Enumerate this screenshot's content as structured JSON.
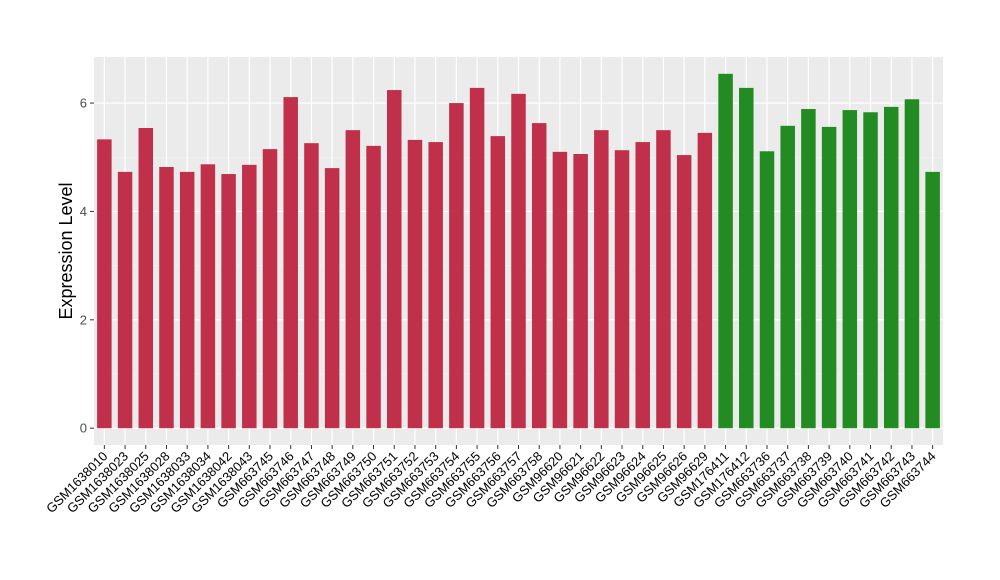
{
  "chart_data": {
    "type": "bar",
    "y_label": "Expression Level",
    "categories": [
      "GSM1638010",
      "GSM1638023",
      "GSM1638025",
      "GSM1638028",
      "GSM1638033",
      "GSM1638034",
      "GSM1638042",
      "GSM1638043",
      "GSM663745",
      "GSM663746",
      "GSM663747",
      "GSM663748",
      "GSM663749",
      "GSM663750",
      "GSM663751",
      "GSM663752",
      "GSM663753",
      "GSM663754",
      "GSM663755",
      "GSM663756",
      "GSM663757",
      "GSM663758",
      "GSM96620",
      "GSM96621",
      "GSM96622",
      "GSM96623",
      "GSM96624",
      "GSM96625",
      "GSM96626",
      "GSM96629",
      "GSM176411",
      "GSM176412",
      "GSM663736",
      "GSM663737",
      "GSM663738",
      "GSM663739",
      "GSM663740",
      "GSM663741",
      "GSM663742",
      "GSM663743",
      "GSM663744"
    ],
    "values": [
      5.33,
      4.73,
      5.54,
      4.82,
      4.73,
      4.87,
      4.69,
      4.86,
      5.15,
      6.11,
      5.26,
      4.8,
      5.5,
      5.21,
      6.24,
      5.32,
      5.28,
      6.0,
      6.28,
      5.39,
      6.17,
      5.63,
      5.1,
      5.06,
      5.5,
      5.13,
      5.28,
      5.5,
      5.04,
      5.45,
      6.54,
      6.28,
      5.11,
      5.58,
      5.89,
      5.56,
      5.87,
      5.83,
      5.93,
      6.07,
      4.73
    ],
    "colors": [
      "#c1304b",
      "#c1304b",
      "#c1304b",
      "#c1304b",
      "#c1304b",
      "#c1304b",
      "#c1304b",
      "#c1304b",
      "#c1304b",
      "#c1304b",
      "#c1304b",
      "#c1304b",
      "#c1304b",
      "#c1304b",
      "#c1304b",
      "#c1304b",
      "#c1304b",
      "#c1304b",
      "#c1304b",
      "#c1304b",
      "#c1304b",
      "#c1304b",
      "#c1304b",
      "#c1304b",
      "#c1304b",
      "#c1304b",
      "#c1304b",
      "#c1304b",
      "#c1304b",
      "#c1304b",
      "#228b22",
      "#228b22",
      "#228b22",
      "#228b22",
      "#228b22",
      "#228b22",
      "#228b22",
      "#228b22",
      "#228b22",
      "#228b22",
      "#228b22"
    ],
    "ylim": [
      -0.31,
      6.85
    ],
    "yticks": [
      0,
      2,
      4,
      6
    ],
    "y_minor_grid": [
      1,
      3,
      5
    ],
    "grid": true
  }
}
